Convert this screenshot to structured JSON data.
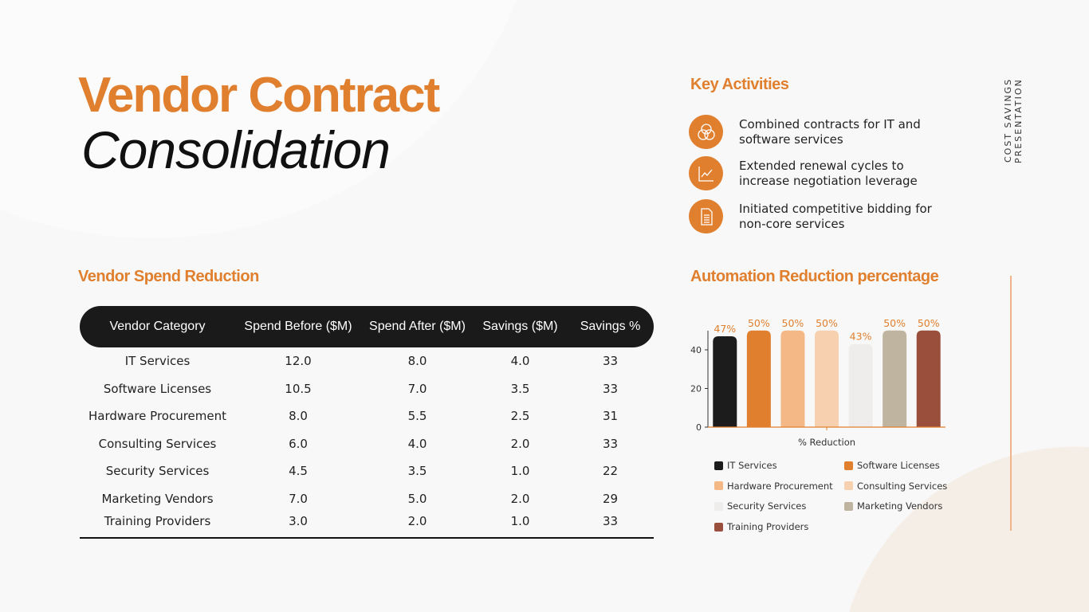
{
  "title": {
    "line1": "Vendor Contract",
    "line2": "Consolidation"
  },
  "side_label": "COST SAVINGS PRESENTATION",
  "key_activities": {
    "heading": "Key Activities",
    "items": [
      {
        "icon": "venn-circles-icon",
        "text": "Combined contracts for IT and software services"
      },
      {
        "icon": "line-chart-icon",
        "text": "Extended renewal cycles to increase negotiation leverage"
      },
      {
        "icon": "document-icon",
        "text": "Initiated competitive bidding for non-core services"
      }
    ]
  },
  "table": {
    "heading": "Vendor Spend  Reduction",
    "columns": [
      "Vendor Category",
      "Spend  Before ($M)",
      "Spend After ($M)",
      "Savings ($M)",
      "Savings %"
    ],
    "rows": [
      [
        "IT Services",
        "12.0",
        "8.0",
        "4.0",
        "33"
      ],
      [
        "Software Licenses",
        "10.5",
        "7.0",
        "3.5",
        "33"
      ],
      [
        "Hardware Procurement",
        "8.0",
        "5.5",
        "2.5",
        "31"
      ],
      [
        "Consulting Services",
        "6.0",
        "4.0",
        "2.0",
        "33"
      ],
      [
        "Security Services",
        "4.5",
        "3.5",
        "1.0",
        "22"
      ],
      [
        "Marketing Vendors",
        "7.0",
        "5.0",
        "2.0",
        "29"
      ],
      [
        "Training Providers",
        "3.0",
        "2.0",
        "1.0",
        "33"
      ]
    ]
  },
  "chart_data": {
    "type": "bar",
    "title": "Automation  Reduction percentage",
    "xlabel": "% Reduction",
    "ylabel": "",
    "categories": [
      "% Reduction"
    ],
    "ylim": [
      0,
      50
    ],
    "yticks": [
      0,
      20,
      40
    ],
    "grid": false,
    "legend_position": "bottom",
    "series": [
      {
        "name": "IT Services",
        "value": 47,
        "label": "47%",
        "color": "#1c1c1c"
      },
      {
        "name": "Software Licenses",
        "value": 50,
        "label": "50%",
        "color": "#e07f2e"
      },
      {
        "name": "Hardware Procurement",
        "value": 50,
        "label": "50%",
        "color": "#f4b887"
      },
      {
        "name": "Consulting Services",
        "value": 50,
        "label": "50%",
        "color": "#f7d0b0"
      },
      {
        "name": "Security Services",
        "value": 43,
        "label": "43%",
        "color": "#efedeb"
      },
      {
        "name": "Marketing Vendors",
        "value": 50,
        "label": "50%",
        "color": "#bfb4a0"
      },
      {
        "name": "Training Providers",
        "value": 50,
        "label": "50%",
        "color": "#9a4f3c"
      }
    ]
  }
}
